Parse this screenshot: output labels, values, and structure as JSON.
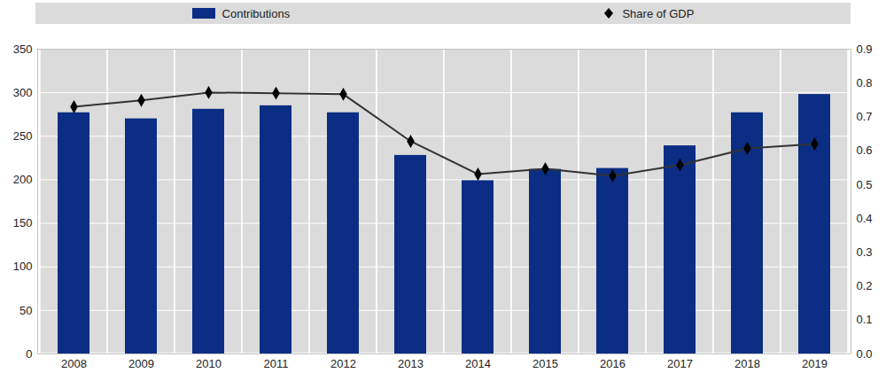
{
  "chart_data": {
    "type": "bar",
    "categories": [
      "2008",
      "2009",
      "2010",
      "2011",
      "2012",
      "2013",
      "2014",
      "2015",
      "2016",
      "2017",
      "2018",
      "2019"
    ],
    "series": [
      {
        "name": "Contributions",
        "type": "bar",
        "color": "#0b2d84",
        "values": [
          277,
          270,
          281,
          285,
          277,
          228,
          199,
          212,
          213,
          239,
          277,
          298
        ]
      },
      {
        "name": "Share of GDP",
        "type": "line",
        "axis": "y2",
        "color": "#333333",
        "marker": "diamond",
        "values": [
          0.73,
          0.749,
          0.772,
          0.77,
          0.767,
          0.628,
          0.531,
          0.547,
          0.526,
          0.558,
          0.607,
          0.62
        ]
      }
    ],
    "ylim": [
      0,
      350
    ],
    "yticks": [
      0,
      50,
      100,
      150,
      200,
      250,
      300,
      350
    ],
    "y2lim": [
      0,
      0.9
    ],
    "y2ticks": [
      {
        "value": 0,
        "label": "0.0"
      },
      0.1,
      0.2,
      0.3,
      0.4,
      0.5,
      0.6,
      0.7,
      0.8,
      0.9
    ],
    "grid": true,
    "legend": "top"
  }
}
